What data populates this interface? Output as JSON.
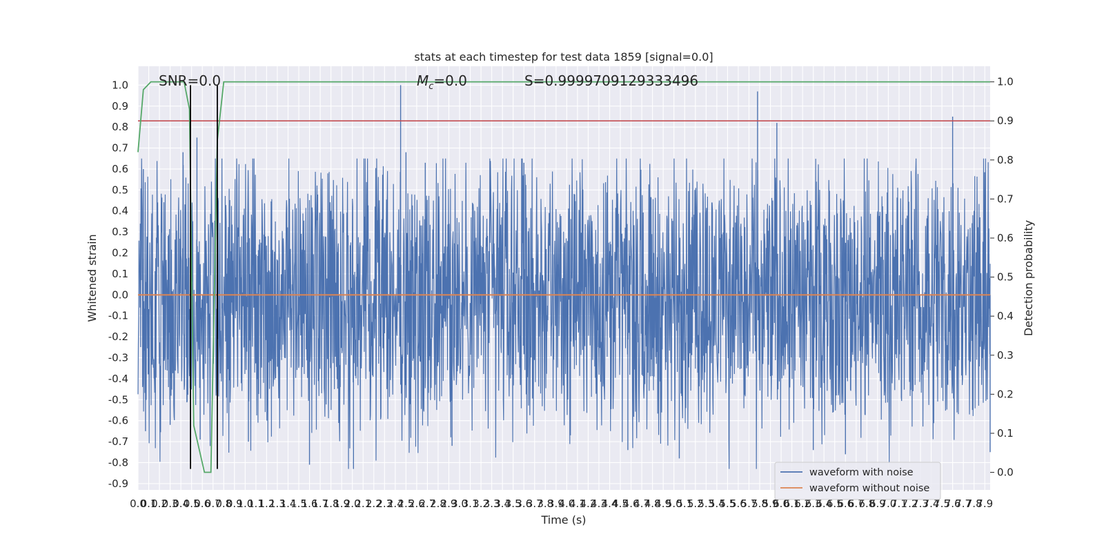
{
  "chart_data": {
    "type": "line",
    "title": "stats at each timestep for test data 1859 [signal=0.0]",
    "xlabel": "Time (s)",
    "ylabel": "Whitened strain",
    "y2label": "Detection probability",
    "xlim": [
      0.0,
      7.95
    ],
    "ylim": [
      -0.93,
      1.09
    ],
    "y2lim": [
      -0.045,
      1.04
    ],
    "x_ticks": [
      "0.0",
      "0.1",
      "0.2",
      "0.3",
      "0.4",
      "0.5",
      "0.6",
      "0.7",
      "0.8",
      "0.9",
      "1.0",
      "1.1",
      "1.2",
      "1.3",
      "1.4",
      "1.5",
      "1.6",
      "1.7",
      "1.8",
      "1.9",
      "2.0",
      "2.1",
      "2.2",
      "2.3",
      "2.4",
      "2.5",
      "2.6",
      "2.7",
      "2.8",
      "2.9",
      "3.0",
      "3.1",
      "3.2",
      "3.3",
      "3.4",
      "3.5",
      "3.6",
      "3.7",
      "3.8",
      "3.9",
      "4.0",
      "4.1",
      "4.2",
      "4.3",
      "4.4",
      "4.5",
      "4.6",
      "4.7",
      "4.8",
      "4.9",
      "5.0",
      "5.1",
      "5.2",
      "5.3",
      "5.4",
      "5.5",
      "5.6",
      "5.7",
      "5.8",
      "5.9",
      "6.0",
      "6.1",
      "6.2",
      "6.3",
      "6.4",
      "6.5",
      "6.6",
      "6.7",
      "6.8",
      "6.9",
      "7.0",
      "7.1",
      "7.2",
      "7.3",
      "7.4",
      "7.5",
      "7.6",
      "7.7",
      "7.8",
      "7.9"
    ],
    "y_ticks": [
      "1.0",
      "0.9",
      "0.8",
      "0.7",
      "0.6",
      "0.5",
      "0.4",
      "0.3",
      "0.2",
      "0.1",
      "0.0",
      "-0.1",
      "-0.2",
      "-0.3",
      "-0.4",
      "-0.5",
      "-0.6",
      "-0.7",
      "-0.8",
      "-0.9"
    ],
    "y2_ticks": [
      "1.0",
      "0.9",
      "0.8",
      "0.7",
      "0.6",
      "0.5",
      "0.4",
      "0.3",
      "0.2",
      "0.1",
      "0.0"
    ],
    "annotations": {
      "snr": "SNR=0.0",
      "mc": "=0.0",
      "mc_symbol": "M",
      "mc_subscript": "c",
      "s": "S=0.9999709129333496"
    },
    "legend": {
      "placement": "lower-right",
      "entries": [
        "waveform with noise",
        "waveform without noise"
      ]
    },
    "grid": true,
    "series": [
      {
        "name": "waveform with noise",
        "color": "#4c72b0",
        "axis": "left",
        "duration": 7.95,
        "approx_envelope": {
          "upper_typical": 0.45,
          "lower_typical": -0.55,
          "max": 1.0,
          "min": -0.83
        },
        "spikes": [
          {
            "x": 0.05,
            "y": 0.6
          },
          {
            "x": 0.07,
            "y": -0.65
          },
          {
            "x": 0.3,
            "y": -0.62
          },
          {
            "x": 0.42,
            "y": 0.68
          },
          {
            "x": 0.55,
            "y": 0.75
          },
          {
            "x": 0.58,
            "y": -0.69
          },
          {
            "x": 1.03,
            "y": -0.7
          },
          {
            "x": 1.6,
            "y": -0.81
          },
          {
            "x": 2.01,
            "y": -0.83
          },
          {
            "x": 2.45,
            "y": 1.0
          },
          {
            "x": 2.5,
            "y": 0.68
          },
          {
            "x": 2.68,
            "y": 0.63
          },
          {
            "x": 2.93,
            "y": -0.72
          },
          {
            "x": 3.6,
            "y": 0.63
          },
          {
            "x": 4.57,
            "y": -0.74
          },
          {
            "x": 5.05,
            "y": -0.78
          },
          {
            "x": 5.78,
            "y": 0.97
          },
          {
            "x": 5.96,
            "y": 0.82
          },
          {
            "x": 6.3,
            "y": -0.74
          },
          {
            "x": 6.6,
            "y": -0.76
          },
          {
            "x": 7.6,
            "y": 0.85
          },
          {
            "x": 7.95,
            "y": -0.75
          }
        ]
      },
      {
        "name": "waveform without noise",
        "color": "#dd8452",
        "axis": "left",
        "x": [
          0.0,
          7.95
        ],
        "y": [
          0.0,
          0.0
        ]
      },
      {
        "name": "detection probability",
        "color": "#55a868",
        "axis": "right",
        "x": [
          0.0,
          0.05,
          0.12,
          0.43,
          0.48,
          0.52,
          0.62,
          0.68,
          0.74,
          0.8,
          7.95
        ],
        "y": [
          0.82,
          0.98,
          1.0,
          1.0,
          0.93,
          0.12,
          0.0,
          0.0,
          0.85,
          1.0,
          1.0
        ]
      },
      {
        "name": "threshold",
        "color": "#c44e52",
        "axis": "right",
        "x": [
          0.0,
          7.95
        ],
        "y": [
          0.9,
          0.9
        ]
      },
      {
        "name": "event markers",
        "color": "#000000",
        "axis": "left",
        "x": [
          0.49,
          0.74
        ],
        "y_range": [
          -0.83,
          1.0
        ]
      }
    ]
  }
}
